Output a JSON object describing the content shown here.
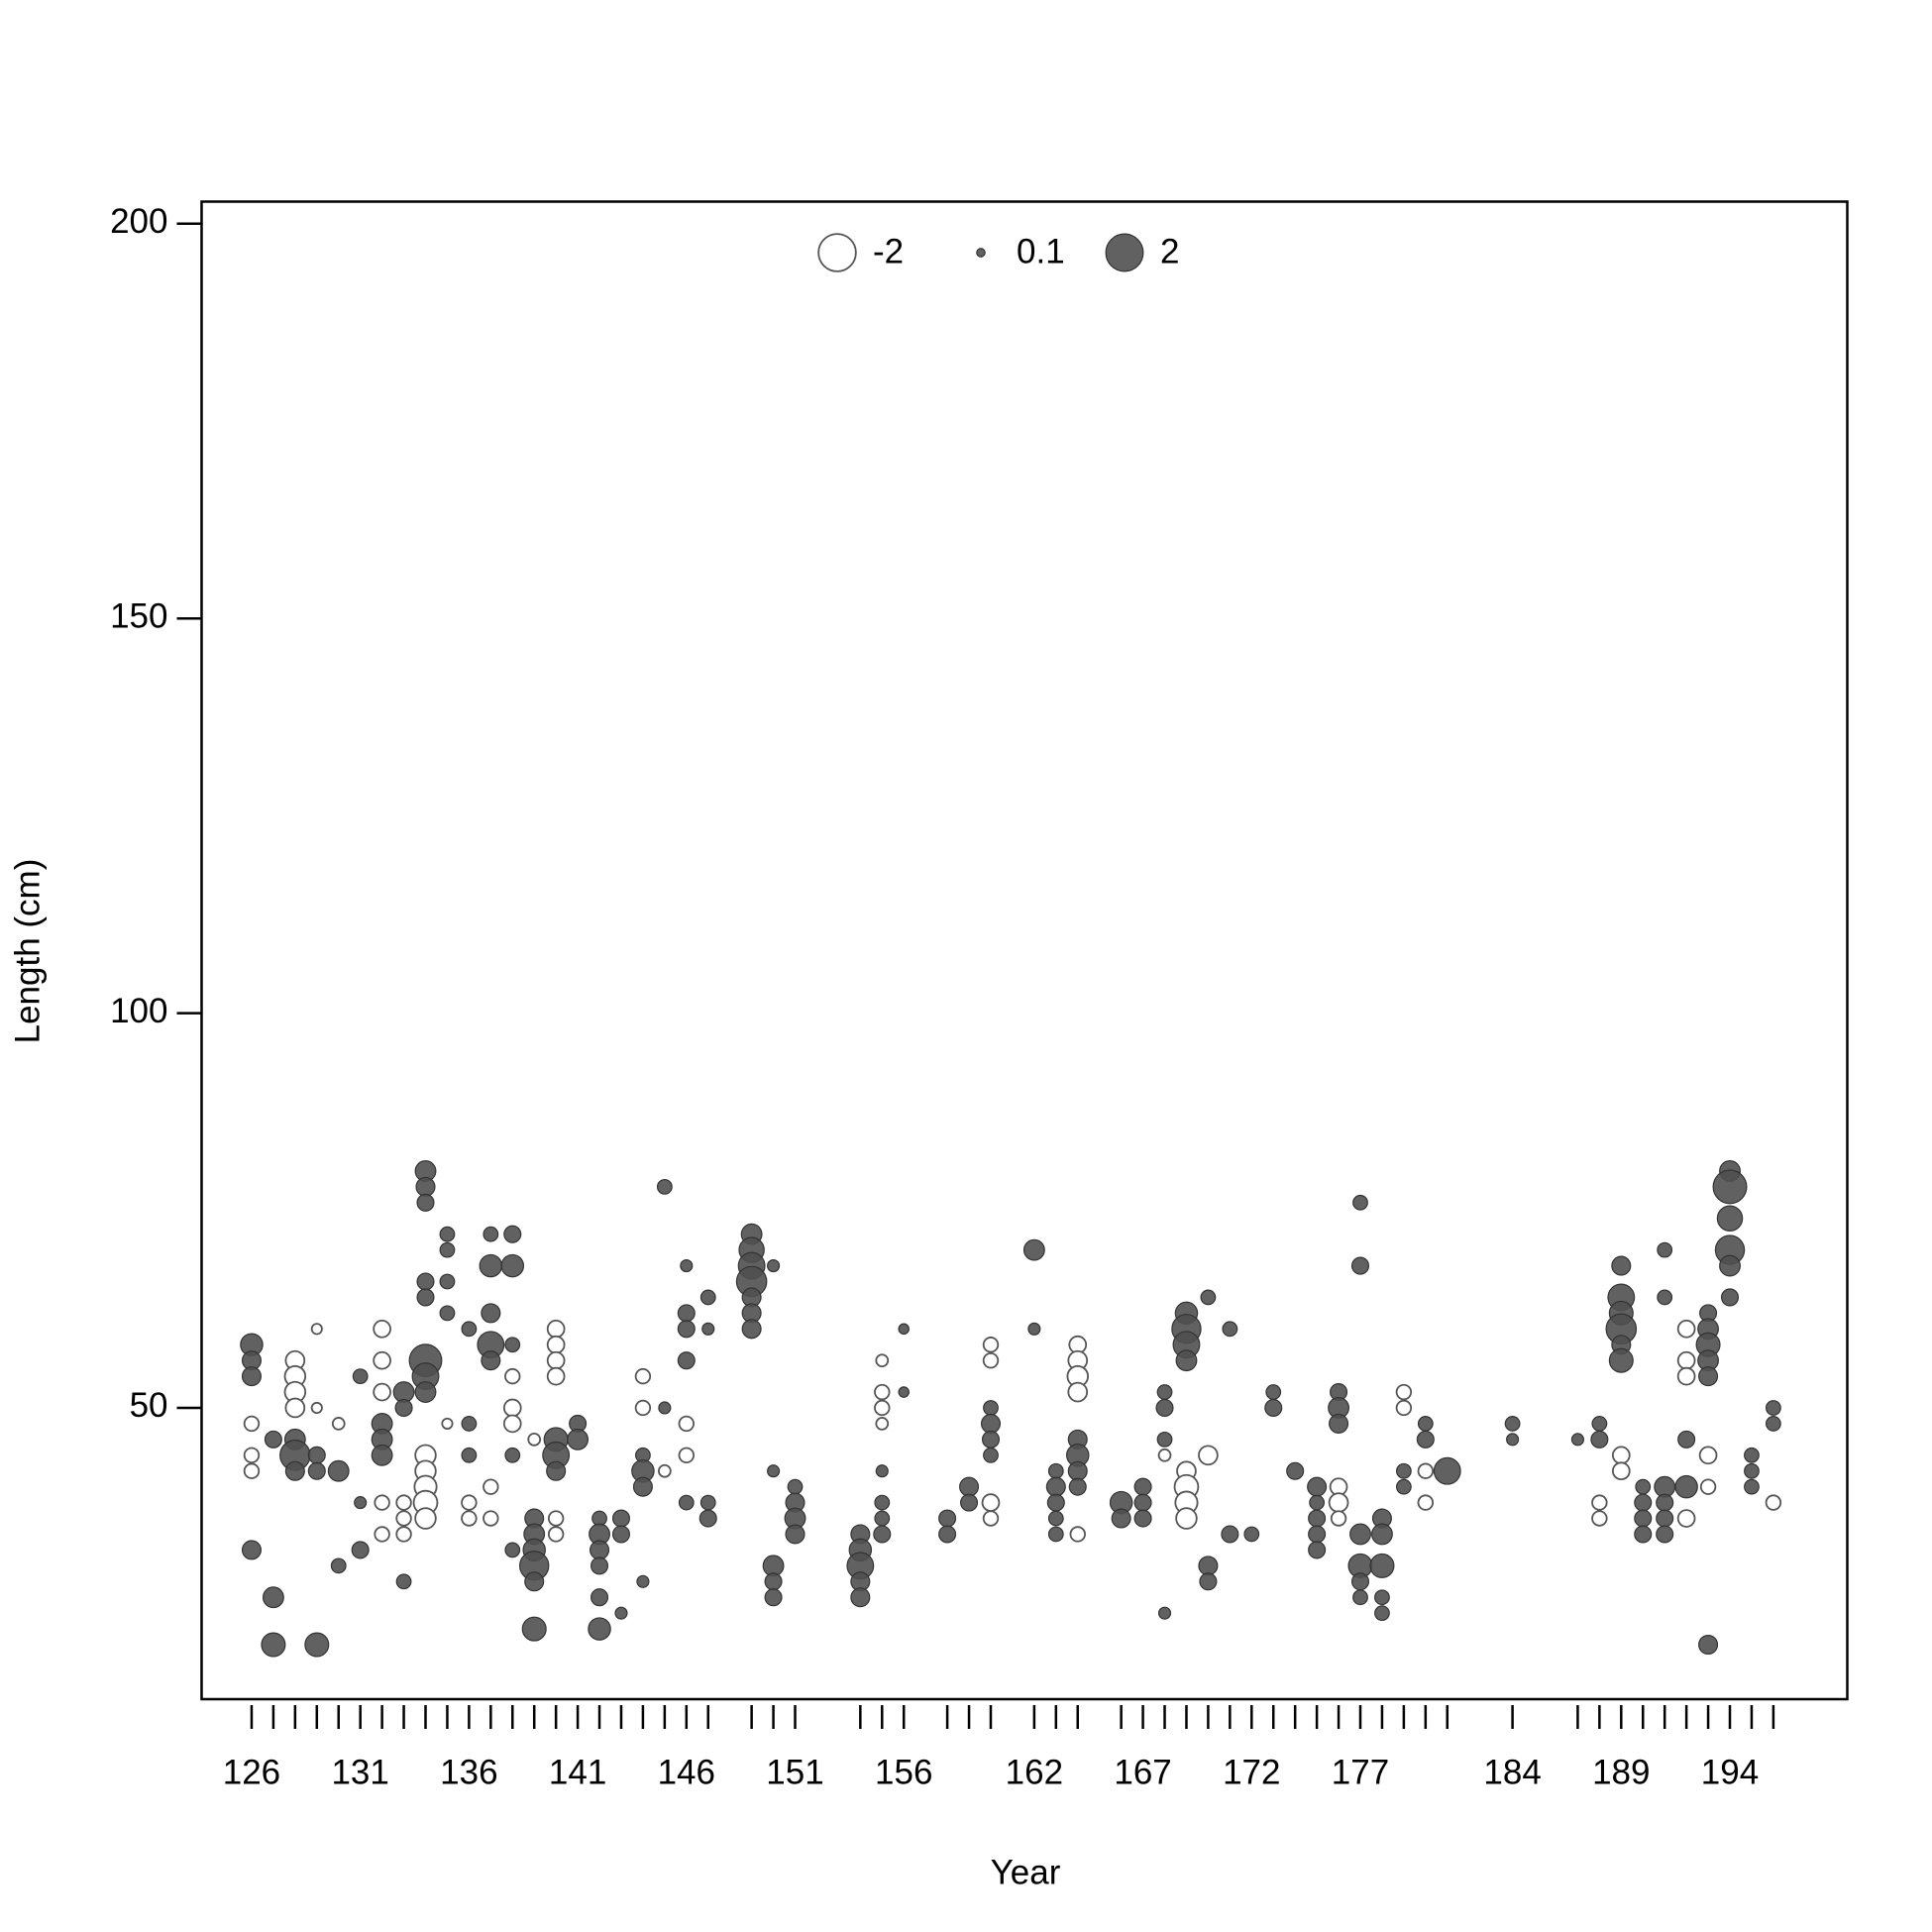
{
  "chart_data": {
    "type": "bubble",
    "x_label": "Year",
    "y_label": "Length (cm)",
    "xlim": [
      123.7,
      199.4
    ],
    "ylim": [
      13.1,
      202.8
    ],
    "xticks": [
      126,
      131,
      136,
      141,
      146,
      151,
      156,
      162,
      167,
      172,
      177,
      184,
      189,
      194
    ],
    "yticks": [
      50,
      100,
      150,
      200
    ],
    "positive_color": "#505050",
    "negative_color": "#ffffff",
    "edge_color": "#555555",
    "legend_values": [
      -2,
      0.1,
      2
    ],
    "legend_position": "top",
    "series": [
      {
        "x": 126,
        "y": [
          58,
          56,
          54,
          48,
          44,
          42,
          32
        ],
        "values": [
          0.7,
          0.5,
          0.5,
          -0.3,
          -0.3,
          -0.3,
          0.5
        ]
      },
      {
        "x": 127,
        "y": [
          46,
          26,
          20
        ],
        "values": [
          0.4,
          0.6,
          0.8
        ]
      },
      {
        "x": 128,
        "y": [
          56,
          54,
          52,
          50,
          46,
          44,
          42
        ],
        "values": [
          -0.5,
          -0.6,
          -0.6,
          -0.5,
          0.6,
          1.3,
          0.5
        ]
      },
      {
        "x": 129,
        "y": [
          60,
          50,
          44,
          42,
          20
        ],
        "values": [
          -0.15,
          -0.15,
          0.4,
          0.4,
          0.8
        ]
      },
      {
        "x": 130,
        "y": [
          48,
          42,
          30
        ],
        "values": [
          -0.2,
          0.6,
          0.3
        ]
      },
      {
        "x": 131,
        "y": [
          54,
          38,
          32
        ],
        "values": [
          0.3,
          0.2,
          0.4
        ]
      },
      {
        "x": 132,
        "y": [
          60,
          56,
          52,
          48,
          46,
          44,
          38,
          34
        ],
        "values": [
          -0.4,
          -0.4,
          -0.4,
          0.6,
          0.6,
          0.6,
          -0.3,
          -0.3
        ]
      },
      {
        "x": 133,
        "y": [
          52,
          50,
          38,
          36,
          34,
          28
        ],
        "values": [
          0.6,
          0.4,
          -0.3,
          -0.3,
          -0.3,
          0.3
        ]
      },
      {
        "x": 134,
        "y": [
          80,
          78,
          76,
          66,
          64,
          56,
          54,
          52,
          44,
          42,
          40,
          38,
          36
        ],
        "values": [
          0.6,
          0.5,
          0.4,
          0.4,
          0.4,
          1.5,
          1.0,
          0.6,
          -0.6,
          -0.6,
          -0.7,
          -0.8,
          -0.6
        ]
      },
      {
        "x": 135,
        "y": [
          72,
          70,
          66,
          62,
          48
        ],
        "values": [
          0.3,
          0.3,
          0.3,
          0.3,
          -0.15
        ]
      },
      {
        "x": 136,
        "y": [
          60,
          48,
          44,
          38,
          36
        ],
        "values": [
          0.3,
          0.3,
          0.3,
          -0.3,
          -0.3
        ]
      },
      {
        "x": 137,
        "y": [
          72,
          68,
          62,
          58,
          56,
          40,
          36
        ],
        "values": [
          0.3,
          0.7,
          0.5,
          1.0,
          0.5,
          -0.3,
          -0.3
        ]
      },
      {
        "x": 138,
        "y": [
          72,
          68,
          58,
          54,
          50,
          48,
          44,
          32
        ],
        "values": [
          0.4,
          0.7,
          0.3,
          -0.3,
          -0.4,
          -0.4,
          0.3,
          0.3
        ]
      },
      {
        "x": 139,
        "y": [
          46,
          36,
          34,
          32,
          30,
          28,
          22
        ],
        "values": [
          -0.2,
          0.5,
          0.6,
          0.7,
          1.2,
          0.5,
          0.8
        ]
      },
      {
        "x": 140,
        "y": [
          60,
          58,
          56,
          54,
          46,
          44,
          42,
          36,
          34
        ],
        "values": [
          -0.4,
          -0.4,
          -0.4,
          -0.4,
          0.8,
          1.0,
          0.5,
          -0.3,
          -0.3
        ]
      },
      {
        "x": 141,
        "y": [
          48,
          46
        ],
        "values": [
          0.4,
          0.6
        ]
      },
      {
        "x": 142,
        "y": [
          36,
          34,
          32,
          30,
          26,
          22
        ],
        "values": [
          0.3,
          0.6,
          0.5,
          0.4,
          0.4,
          0.7
        ]
      },
      {
        "x": 143,
        "y": [
          36,
          34,
          24
        ],
        "values": [
          0.4,
          0.4,
          0.2
        ]
      },
      {
        "x": 144,
        "y": [
          54,
          50,
          44,
          42,
          40,
          28
        ],
        "values": [
          -0.3,
          -0.3,
          0.3,
          0.7,
          0.5,
          0.2
        ]
      },
      {
        "x": 145,
        "y": [
          78,
          50,
          42
        ],
        "values": [
          0.3,
          0.2,
          -0.2
        ]
      },
      {
        "x": 146,
        "y": [
          68,
          62,
          60,
          56,
          48,
          44,
          38
        ],
        "values": [
          0.2,
          0.4,
          0.4,
          0.4,
          -0.3,
          -0.3,
          0.3
        ]
      },
      {
        "x": 147,
        "y": [
          64,
          60,
          38,
          36
        ],
        "values": [
          0.3,
          0.2,
          0.3,
          0.4
        ]
      },
      {
        "x": 149,
        "y": [
          72,
          70,
          68,
          66,
          64,
          62,
          60
        ],
        "values": [
          0.6,
          0.9,
          1.0,
          1.3,
          0.5,
          0.5,
          0.5
        ]
      },
      {
        "x": 150,
        "y": [
          68,
          42,
          30,
          28,
          26
        ],
        "values": [
          0.2,
          0.2,
          0.6,
          0.4,
          0.4
        ]
      },
      {
        "x": 151,
        "y": [
          40,
          38,
          36,
          34
        ],
        "values": [
          0.3,
          0.5,
          0.6,
          0.5
        ]
      },
      {
        "x": 154,
        "y": [
          34,
          32,
          30,
          28,
          26
        ],
        "values": [
          0.5,
          0.7,
          1.0,
          0.5,
          0.5
        ]
      },
      {
        "x": 155,
        "y": [
          56,
          52,
          50,
          48,
          42,
          38,
          36,
          34
        ],
        "values": [
          -0.2,
          -0.3,
          -0.3,
          -0.2,
          0.2,
          0.3,
          0.3,
          0.4
        ]
      },
      {
        "x": 156,
        "y": [
          60,
          52
        ],
        "values": [
          0.15,
          0.15
        ]
      },
      {
        "x": 158,
        "y": [
          36,
          34
        ],
        "values": [
          0.4,
          0.4
        ]
      },
      {
        "x": 159,
        "y": [
          40,
          38
        ],
        "values": [
          0.5,
          0.4
        ]
      },
      {
        "x": 160,
        "y": [
          58,
          56,
          50,
          48,
          46,
          44,
          38,
          36
        ],
        "values": [
          -0.3,
          -0.3,
          0.3,
          0.5,
          0.4,
          0.3,
          -0.4,
          -0.3
        ]
      },
      {
        "x": 162,
        "y": [
          70,
          60
        ],
        "values": [
          0.6,
          0.2
        ]
      },
      {
        "x": 163,
        "y": [
          42,
          40,
          38,
          36,
          34
        ],
        "values": [
          0.3,
          0.5,
          0.4,
          0.3,
          0.3
        ]
      },
      {
        "x": 164,
        "y": [
          58,
          56,
          54,
          52,
          46,
          44,
          42,
          40,
          34
        ],
        "values": [
          -0.4,
          -0.5,
          -0.6,
          -0.5,
          0.5,
          0.7,
          0.5,
          0.4,
          -0.3
        ]
      },
      {
        "x": 166,
        "y": [
          38,
          36
        ],
        "values": [
          0.7,
          0.5
        ]
      },
      {
        "x": 167,
        "y": [
          40,
          38,
          36
        ],
        "values": [
          0.4,
          0.4,
          0.4
        ]
      },
      {
        "x": 168,
        "y": [
          52,
          50,
          46,
          44,
          24
        ],
        "values": [
          0.3,
          0.4,
          0.3,
          -0.2,
          0.2
        ]
      },
      {
        "x": 169,
        "y": [
          62,
          60,
          58,
          56,
          42,
          40,
          38,
          36
        ],
        "values": [
          0.7,
          1.2,
          1.0,
          0.6,
          -0.5,
          -0.8,
          -0.7,
          -0.6
        ]
      },
      {
        "x": 170,
        "y": [
          64,
          44,
          30,
          28
        ],
        "values": [
          0.3,
          -0.5,
          0.5,
          0.4
        ]
      },
      {
        "x": 171,
        "y": [
          60,
          34
        ],
        "values": [
          0.3,
          0.4
        ]
      },
      {
        "x": 172,
        "y": [
          34
        ],
        "values": [
          0.3
        ]
      },
      {
        "x": 173,
        "y": [
          52,
          50
        ],
        "values": [
          0.3,
          0.4
        ]
      },
      {
        "x": 174,
        "y": [
          42
        ],
        "values": [
          0.4
        ]
      },
      {
        "x": 175,
        "y": [
          40,
          38,
          36,
          34,
          32
        ],
        "values": [
          0.5,
          0.3,
          0.4,
          0.4,
          0.4
        ]
      },
      {
        "x": 176,
        "y": [
          52,
          50,
          48,
          40,
          38,
          36
        ],
        "values": [
          0.4,
          0.6,
          0.5,
          -0.4,
          -0.5,
          -0.3
        ]
      },
      {
        "x": 177,
        "y": [
          76,
          68,
          34,
          30,
          28,
          26
        ],
        "values": [
          0.3,
          0.4,
          0.6,
          0.8,
          0.4,
          0.3
        ]
      },
      {
        "x": 178,
        "y": [
          36,
          34,
          30,
          26,
          24
        ],
        "values": [
          0.5,
          0.6,
          0.8,
          0.3,
          0.3
        ]
      },
      {
        "x": 179,
        "y": [
          52,
          50,
          42,
          40
        ],
        "values": [
          -0.3,
          -0.3,
          0.3,
          0.3
        ]
      },
      {
        "x": 180,
        "y": [
          48,
          46,
          42,
          38
        ],
        "values": [
          0.3,
          0.4,
          -0.3,
          -0.3
        ]
      },
      {
        "x": 181,
        "y": [
          42
        ],
        "values": [
          1.0
        ]
      },
      {
        "x": 184,
        "y": [
          48,
          46
        ],
        "values": [
          0.3,
          0.2
        ]
      },
      {
        "x": 187,
        "y": [
          46
        ],
        "values": [
          0.2
        ]
      },
      {
        "x": 188,
        "y": [
          48,
          46,
          38,
          36
        ],
        "values": [
          0.3,
          0.4,
          -0.3,
          -0.3
        ]
      },
      {
        "x": 189,
        "y": [
          68,
          64,
          62,
          60,
          58,
          56,
          44,
          42
        ],
        "values": [
          0.5,
          1.0,
          0.8,
          1.3,
          0.5,
          0.8,
          -0.4,
          -0.4
        ]
      },
      {
        "x": 190,
        "y": [
          40,
          38,
          36,
          34
        ],
        "values": [
          0.3,
          0.4,
          0.4,
          0.4
        ]
      },
      {
        "x": 191,
        "y": [
          70,
          64,
          40,
          38,
          36,
          34
        ],
        "values": [
          0.3,
          0.3,
          0.6,
          0.4,
          0.4,
          0.4
        ]
      },
      {
        "x": 192,
        "y": [
          60,
          56,
          54,
          46,
          40,
          36
        ],
        "values": [
          -0.4,
          -0.4,
          -0.4,
          0.4,
          0.7,
          -0.4
        ]
      },
      {
        "x": 193,
        "y": [
          62,
          60,
          58,
          56,
          54,
          44,
          40,
          20
        ],
        "values": [
          0.4,
          0.6,
          0.8,
          0.6,
          0.5,
          -0.4,
          -0.3,
          0.5
        ]
      },
      {
        "x": 194,
        "y": [
          80,
          78,
          74,
          70,
          68,
          64
        ],
        "values": [
          0.6,
          1.6,
          0.9,
          1.2,
          0.6,
          0.4
        ]
      },
      {
        "x": 195,
        "y": [
          44,
          42,
          40
        ],
        "values": [
          0.3,
          0.3,
          0.3
        ]
      },
      {
        "x": 196,
        "y": [
          50,
          48,
          38
        ],
        "values": [
          0.3,
          0.3,
          -0.3
        ]
      }
    ]
  }
}
